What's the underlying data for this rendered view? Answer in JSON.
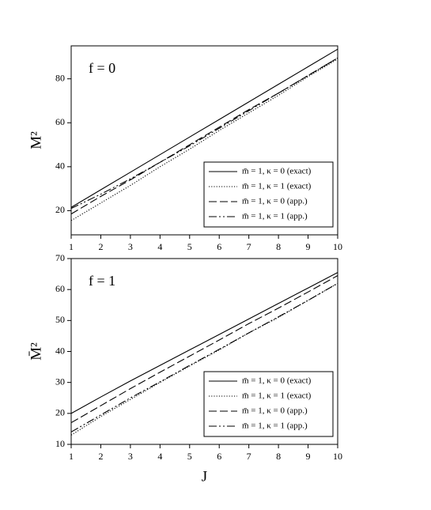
{
  "chart_data": [
    {
      "type": "line",
      "annotation": "f = 0",
      "ylabel": "M²",
      "x": [
        1,
        2,
        3,
        4,
        5,
        6,
        7,
        8,
        9,
        10
      ],
      "xlim": [
        1,
        10
      ],
      "xticks": [
        1,
        2,
        3,
        4,
        5,
        6,
        7,
        8,
        9,
        10
      ],
      "ylim": [
        9,
        95
      ],
      "yticks": [
        20,
        40,
        60,
        80
      ],
      "series": [
        {
          "name": "m̄ = 1, κ = 0 (exact)",
          "color": "#000000",
          "style": "solid",
          "values": [
            21.5,
            29.5,
            37.5,
            45.5,
            53.5,
            61.5,
            69.5,
            77.5,
            85.5,
            93.5
          ]
        },
        {
          "name": "m̄ = 1, κ = 1 (exact)",
          "color": "#000000",
          "style": "dotted",
          "values": [
            15.5,
            23.5,
            31.5,
            40,
            48,
            56.5,
            64.5,
            72.5,
            81,
            89
          ]
        },
        {
          "name": "m̄ = 1, κ = 0 (app.)",
          "color": "#000000",
          "style": "dashed",
          "values": [
            18.5,
            26.5,
            34,
            42,
            50,
            58,
            66,
            73.5,
            81.5,
            89.5
          ]
        },
        {
          "name": "m̄ = 1, κ = 1 (app.)",
          "color": "#000000",
          "style": "dashdotdot",
          "values": [
            21,
            27.5,
            34.5,
            42,
            49.5,
            57.5,
            65.5,
            73.5,
            81.5,
            89.5
          ]
        }
      ]
    },
    {
      "type": "line",
      "annotation": "f = 1",
      "ylabel": "M̄²",
      "xlabel": "J",
      "x": [
        1,
        2,
        3,
        4,
        5,
        6,
        7,
        8,
        9,
        10
      ],
      "xlim": [
        1,
        10
      ],
      "xticks": [
        1,
        2,
        3,
        4,
        5,
        6,
        7,
        8,
        9,
        10
      ],
      "ylim": [
        10,
        70
      ],
      "yticks": [
        10,
        20,
        30,
        40,
        50,
        60,
        70
      ],
      "series": [
        {
          "name": "m̄ = 1, κ = 0 (exact)",
          "color": "#000000",
          "style": "solid",
          "values": [
            20,
            25.3,
            30.5,
            35.5,
            40.5,
            45.5,
            50.5,
            55.5,
            60.5,
            65.5
          ]
        },
        {
          "name": "m̄ = 1, κ = 1 (exact)",
          "color": "#000000",
          "style": "dotted",
          "values": [
            13,
            19,
            24.5,
            30,
            35.3,
            40.5,
            46,
            51,
            56.5,
            62
          ]
        },
        {
          "name": "m̄ = 1, κ = 0 (app.)",
          "color": "#000000",
          "style": "dashed",
          "values": [
            17,
            22.5,
            28,
            33.3,
            38.5,
            43.7,
            49,
            54,
            59.2,
            64.5
          ]
        },
        {
          "name": "m̄ = 1, κ = 1 (app.)",
          "color": "#000000",
          "style": "dashdotdot",
          "values": [
            14,
            19.5,
            25,
            30.2,
            35.5,
            40.7,
            46,
            51.2,
            56.5,
            62
          ]
        }
      ]
    }
  ]
}
